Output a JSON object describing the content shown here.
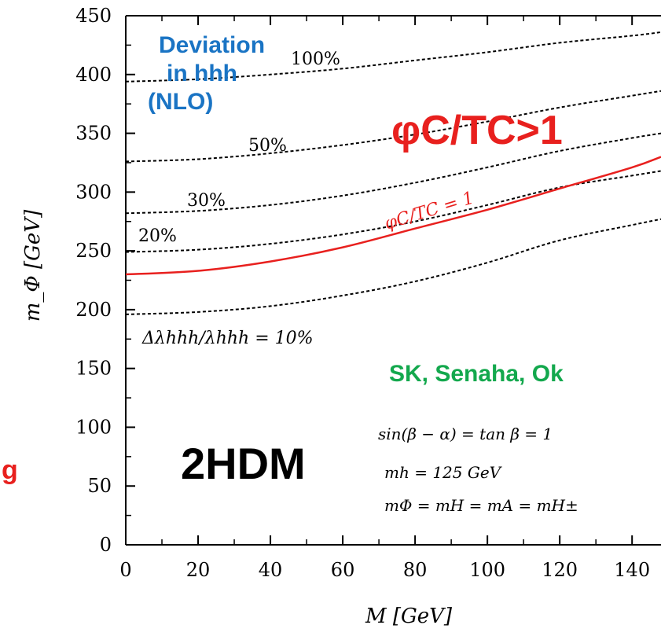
{
  "chart_data": {
    "type": "line",
    "xlabel": "M [GeV]",
    "ylabel": "m_Φ [GeV]",
    "xlim": [
      0,
      148
    ],
    "ylim": [
      0,
      450
    ],
    "x_ticks": [
      0,
      20,
      40,
      60,
      80,
      100,
      120,
      140
    ],
    "y_ticks": [
      0,
      50,
      100,
      150,
      200,
      250,
      300,
      350,
      400,
      450
    ],
    "series": [
      {
        "name": "Δλhhh/λhhh = 10%",
        "style": "dotted",
        "color": "#000000",
        "x": [
          0,
          20,
          40,
          60,
          80,
          100,
          120,
          140,
          148
        ],
        "y": [
          196,
          198,
          203,
          212,
          224,
          240,
          259,
          272,
          277
        ]
      },
      {
        "name": "20%",
        "style": "dotted",
        "color": "#000000",
        "x": [
          0,
          20,
          40,
          60,
          80,
          100,
          120,
          140,
          148
        ],
        "y": [
          249,
          251,
          256,
          264,
          275,
          289,
          304,
          314,
          318
        ]
      },
      {
        "name": "30%",
        "style": "dotted",
        "color": "#000000",
        "x": [
          0,
          20,
          40,
          60,
          80,
          100,
          120,
          140,
          148
        ],
        "y": [
          282,
          284,
          289,
          297,
          308,
          321,
          335,
          346,
          350
        ]
      },
      {
        "name": "50%",
        "style": "dotted",
        "color": "#000000",
        "x": [
          0,
          20,
          40,
          60,
          80,
          100,
          120,
          140,
          148
        ],
        "y": [
          326,
          328,
          333,
          340,
          349,
          360,
          372,
          382,
          386
        ]
      },
      {
        "name": "100%",
        "style": "dotted",
        "color": "#000000",
        "x": [
          0,
          20,
          40,
          60,
          80,
          100,
          120,
          140,
          148
        ],
        "y": [
          394,
          396,
          400,
          405,
          412,
          419,
          427,
          433,
          436
        ]
      },
      {
        "name": "φC/TC = 1",
        "style": "solid",
        "color": "#e8201e",
        "x": [
          0,
          20,
          40,
          60,
          80,
          100,
          120,
          140,
          148
        ],
        "y": [
          230,
          233,
          241,
          253,
          269,
          285,
          303,
          321,
          330
        ]
      }
    ],
    "annotations": {
      "deviation": [
        "Deviation",
        "in hhh",
        "(NLO)"
      ],
      "curve_labels": [
        "100%",
        "50%",
        "30%",
        "20%",
        "Δλhhh/λhhh = 10%",
        "φC/TC = 1"
      ],
      "region_label": "φC/TC>1",
      "authors": "SK, Senaha, Ok",
      "model": "2HDM",
      "params": [
        "sin(β − α) = tan β = 1",
        "mh = 125 GeV",
        "mΦ = mH = mA = mH±"
      ],
      "cut_text": "g"
    },
    "colors": {
      "accent_red": "#e8201e",
      "blue": "#1a74c4",
      "green": "#13a84d",
      "axis": "#000000"
    },
    "grid": false,
    "legend": "none"
  }
}
